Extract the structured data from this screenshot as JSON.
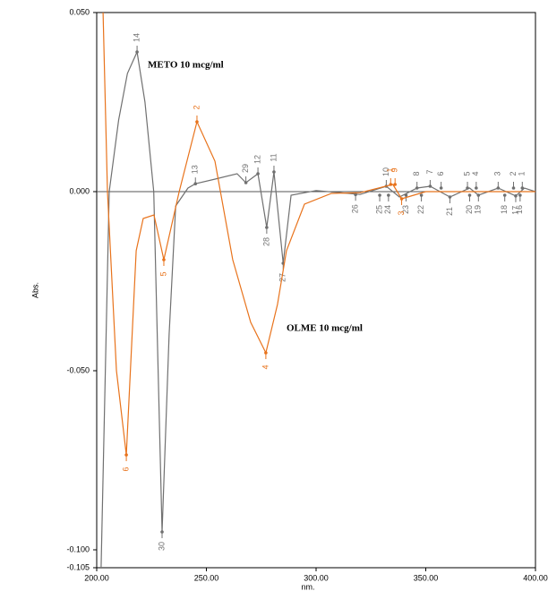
{
  "chart_data": {
    "type": "line",
    "x_label": "nm.",
    "y_label": "Abs.",
    "xlim": [
      200,
      400
    ],
    "ylim": [
      -0.105,
      0.05
    ],
    "xticks": [
      {
        "value": 200,
        "label": "200.00"
      },
      {
        "value": 250,
        "label": "250.00"
      },
      {
        "value": 300,
        "label": "300.00"
      },
      {
        "value": 350,
        "label": "350.00"
      },
      {
        "value": 400,
        "label": "400.00"
      }
    ],
    "yticks": [
      {
        "value": -0.105,
        "label": "-0.105"
      },
      {
        "value": -0.1,
        "label": "-0.100"
      },
      {
        "value": -0.05,
        "label": "-0.050"
      },
      {
        "value": 0,
        "label": "0.000"
      },
      {
        "value": 0.05,
        "label": "0.050"
      }
    ],
    "series": [
      {
        "name": "METO 10 mcg/ml",
        "color": "#707070",
        "x": [
          202,
          205.7,
          210,
          214,
          218.4,
          222,
          226,
          229.8,
          233,
          236,
          241.6,
          245,
          254,
          264,
          268,
          273.5,
          277.5,
          280.8,
          285,
          288.6,
          300,
          320,
          332,
          338,
          346,
          352,
          361,
          370,
          374,
          383,
          391,
          395,
          400
        ],
        "values": [
          -0.105,
          0,
          0.02,
          0.033,
          0.039,
          0.025,
          0,
          -0.095,
          -0.04,
          -0.004,
          0.001,
          0.0022,
          0.0035,
          0.005,
          0.0025,
          0.005,
          -0.01,
          0.0055,
          -0.02,
          -0.001,
          0.0003,
          -0.0008,
          0.0015,
          -0.0015,
          0.001,
          0.0015,
          -0.0015,
          0.001,
          -0.001,
          0.001,
          -0.0012,
          0.001,
          0
        ],
        "peaks": [
          {
            "label": "14",
            "x": 218.4,
            "y": 0.039
          },
          {
            "label": "13",
            "x": 245,
            "y": 0.0022
          },
          {
            "label": "29",
            "x": 268,
            "y": 0.0025
          },
          {
            "label": "12",
            "x": 273.5,
            "y": 0.005
          },
          {
            "label": "11",
            "x": 280.8,
            "y": 0.0055
          },
          {
            "label": "10",
            "x": 332,
            "y": 0.0015
          },
          {
            "label": "8",
            "x": 346,
            "y": 0.001
          },
          {
            "label": "7",
            "x": 352,
            "y": 0.0015
          },
          {
            "label": "6",
            "x": 357,
            "y": 0.001
          },
          {
            "label": "5",
            "x": 369,
            "y": 0.001
          },
          {
            "label": "4",
            "x": 373,
            "y": 0.001
          },
          {
            "label": "3",
            "x": 383,
            "y": 0.001
          },
          {
            "label": "2",
            "x": 390,
            "y": 0.001
          },
          {
            "label": "1",
            "x": 394,
            "y": 0.001
          }
        ],
        "valleys": [
          {
            "label": "30",
            "x": 229.8,
            "y": -0.095
          },
          {
            "label": "28",
            "x": 277.5,
            "y": -0.01
          },
          {
            "label": "27",
            "x": 285,
            "y": -0.02
          },
          {
            "label": "26",
            "x": 318,
            "y": -0.0008
          },
          {
            "label": "25",
            "x": 329,
            "y": -0.001
          },
          {
            "label": "24",
            "x": 333,
            "y": -0.001
          },
          {
            "label": "23",
            "x": 341,
            "y": -0.001
          },
          {
            "label": "22",
            "x": 348,
            "y": -0.001
          },
          {
            "label": "21",
            "x": 361,
            "y": -0.0015
          },
          {
            "label": "20",
            "x": 370,
            "y": -0.001
          },
          {
            "label": "19",
            "x": 374,
            "y": -0.001
          },
          {
            "label": "18",
            "x": 386,
            "y": -0.001
          },
          {
            "label": "17",
            "x": 391,
            "y": -0.0012
          },
          {
            "label": "16",
            "x": 393,
            "y": -0.001
          }
        ]
      },
      {
        "name": "OLME 10 mcg/ml",
        "color": "#e8731c",
        "x": [
          202.9,
          204.9,
          209,
          213.5,
          218,
          221.2,
          226.1,
          230.6,
          237.6,
          245.7,
          253.9,
          262,
          270.2,
          277.1,
          282.4,
          286.5,
          294.7,
          307,
          320,
          335,
          339,
          350,
          400
        ],
        "values": [
          0.05,
          0,
          -0.05,
          -0.0735,
          -0.0165,
          -0.0075,
          -0.0065,
          -0.019,
          0,
          0.0195,
          0.0085,
          -0.019,
          -0.0365,
          -0.045,
          -0.0315,
          -0.0165,
          -0.0035,
          -0.0005,
          -0.0003,
          0.002,
          -0.002,
          0,
          0
        ],
        "peaks": [
          {
            "label": "2",
            "x": 245.7,
            "y": 0.0195
          },
          {
            "label": "9",
            "x": 336,
            "y": 0.002
          },
          {
            "label": "1",
            "x": 334,
            "y": 0.002
          }
        ],
        "valleys": [
          {
            "label": "6",
            "x": 213.5,
            "y": -0.0735
          },
          {
            "label": "5",
            "x": 230.6,
            "y": -0.019
          },
          {
            "label": "4",
            "x": 277.1,
            "y": -0.045
          },
          {
            "label": "3",
            "x": 339,
            "y": -0.002
          }
        ]
      }
    ]
  }
}
